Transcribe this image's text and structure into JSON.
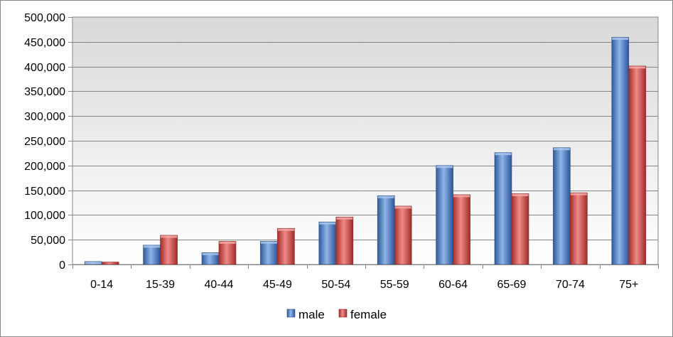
{
  "chart_data": {
    "type": "bar",
    "categories": [
      "0-14",
      "15-39",
      "40-44",
      "45-49",
      "50-54",
      "55-59",
      "60-64",
      "65-69",
      "70-74",
      "75+"
    ],
    "series": [
      {
        "name": "male",
        "color": "#4f81bd",
        "values": [
          6000,
          39000,
          24000,
          47000,
          86000,
          139000,
          200000,
          226000,
          236000,
          459000
        ]
      },
      {
        "name": "female",
        "color": "#c0504d",
        "values": [
          5000,
          59000,
          47000,
          73000,
          96000,
          118000,
          141000,
          143000,
          145000,
          401000
        ]
      }
    ],
    "ylim": [
      0,
      500000
    ],
    "yticks": [
      0,
      50000,
      100000,
      150000,
      200000,
      250000,
      300000,
      350000,
      400000,
      450000,
      500000
    ],
    "ytick_labels": [
      "0",
      "50,000",
      "100,000",
      "150,000",
      "200,000",
      "250,000",
      "300,000",
      "350,000",
      "400,000",
      "450,000",
      "500,000"
    ],
    "grid": true,
    "legend_position": "bottom"
  }
}
